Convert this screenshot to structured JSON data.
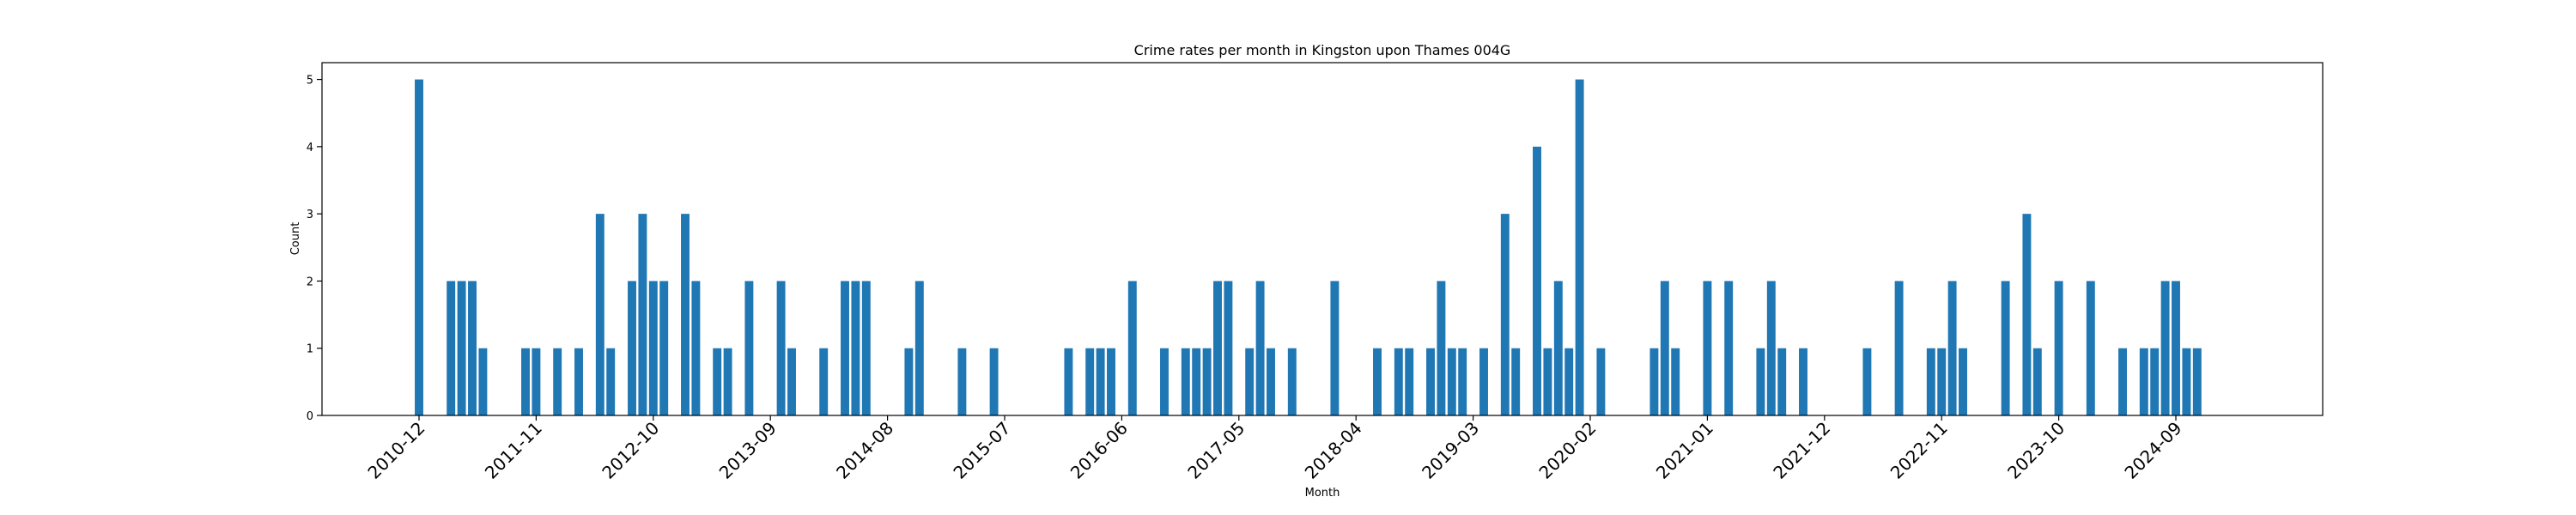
{
  "chart_data": {
    "type": "bar",
    "title": "Crime rates per month in Kingston upon Thames 004G",
    "xlabel": "Month",
    "ylabel": "Count",
    "ylim": [
      0,
      5.25
    ],
    "yticks": [
      0,
      1,
      2,
      3,
      4,
      5
    ],
    "xticks": [
      "2010-12",
      "2011-11",
      "2012-10",
      "2013-09",
      "2014-08",
      "2015-07",
      "2016-06",
      "2017-05",
      "2018-04",
      "2019-03",
      "2020-02",
      "2021-01",
      "2021-12",
      "2022-11",
      "2023-10",
      "2024-09"
    ],
    "x_start": "2010-12",
    "x_end": "2024-09",
    "grid": false,
    "color": "#1f77b4",
    "categories": [
      "2010-12",
      "2011-03",
      "2011-04",
      "2011-05",
      "2011-06",
      "2011-10",
      "2011-11",
      "2012-01",
      "2012-03",
      "2012-05",
      "2012-06",
      "2012-08",
      "2012-09",
      "2012-10",
      "2012-11",
      "2013-01",
      "2013-02",
      "2013-04",
      "2013-05",
      "2013-07",
      "2013-10",
      "2013-11",
      "2014-02",
      "2014-04",
      "2014-05",
      "2014-06",
      "2014-10",
      "2014-11",
      "2015-03",
      "2015-06",
      "2016-01",
      "2016-03",
      "2016-04",
      "2016-05",
      "2016-07",
      "2016-10",
      "2016-12",
      "2017-01",
      "2017-02",
      "2017-03",
      "2017-04",
      "2017-06",
      "2017-07",
      "2017-08",
      "2017-10",
      "2018-02",
      "2018-06",
      "2018-08",
      "2018-09",
      "2018-11",
      "2018-12",
      "2019-01",
      "2019-02",
      "2019-04",
      "2019-06",
      "2019-07",
      "2019-09",
      "2019-10",
      "2019-11",
      "2019-12",
      "2020-01",
      "2020-03",
      "2020-08",
      "2020-09",
      "2020-10",
      "2021-01",
      "2021-03",
      "2021-06",
      "2021-07",
      "2021-08",
      "2021-10",
      "2022-04",
      "2022-07",
      "2022-10",
      "2022-11",
      "2022-12",
      "2023-01",
      "2023-05",
      "2023-07",
      "2023-08",
      "2023-10",
      "2024-01",
      "2024-04",
      "2024-06",
      "2024-07",
      "2024-08",
      "2024-09",
      "2024-10",
      "2024-11"
    ],
    "values": [
      5,
      2,
      2,
      2,
      1,
      1,
      1,
      1,
      1,
      3,
      1,
      2,
      3,
      2,
      2,
      3,
      2,
      1,
      1,
      2,
      2,
      1,
      1,
      2,
      2,
      2,
      1,
      2,
      1,
      1,
      1,
      1,
      1,
      1,
      2,
      1,
      1,
      1,
      1,
      2,
      2,
      1,
      2,
      1,
      1,
      2,
      1,
      1,
      1,
      1,
      2,
      1,
      1,
      1,
      3,
      1,
      4,
      1,
      2,
      1,
      5,
      1,
      1,
      2,
      1,
      2,
      2,
      1,
      2,
      1,
      1,
      1,
      2,
      1,
      1,
      2,
      1,
      2,
      3,
      1,
      2,
      2,
      1,
      1,
      1,
      2,
      2,
      1,
      1
    ]
  }
}
